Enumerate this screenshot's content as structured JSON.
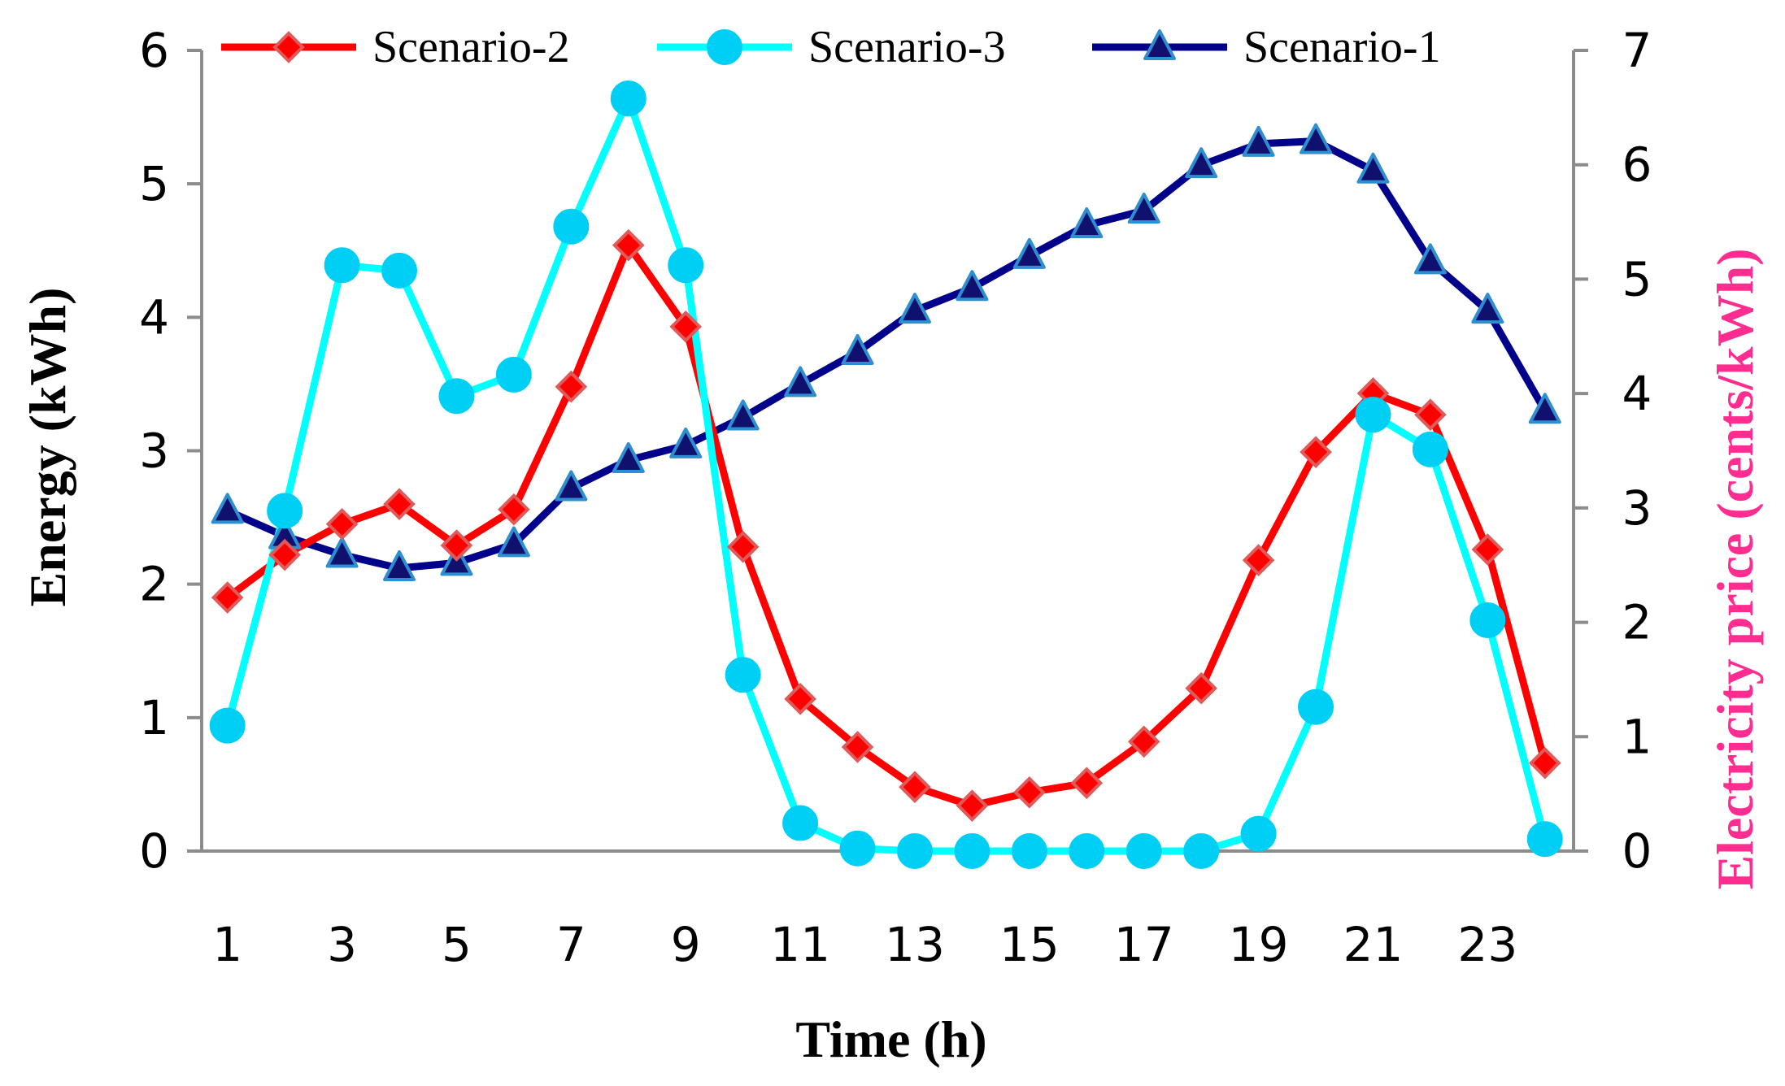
{
  "chart_data": {
    "type": "line",
    "xlabel": "Time (h)",
    "ylabel": "Energy (kWh)",
    "y2label": "Electricity price (cents/kWh)",
    "ylim": [
      0,
      6
    ],
    "y2lim": [
      0,
      7
    ],
    "y_ticks": [
      "0",
      "1",
      "2",
      "3",
      "4",
      "5",
      "6"
    ],
    "y2_ticks": [
      "0",
      "1",
      "2",
      "3",
      "4",
      "5",
      "6",
      "7"
    ],
    "x": [
      1,
      2,
      3,
      4,
      5,
      6,
      7,
      8,
      9,
      10,
      11,
      12,
      13,
      14,
      15,
      16,
      17,
      18,
      19,
      20,
      21,
      22,
      23,
      24
    ],
    "x_tick_labels": [
      "1",
      "3",
      "5",
      "7",
      "9",
      "11",
      "13",
      "15",
      "17",
      "19",
      "21",
      "23"
    ],
    "legend_position": "top",
    "grid": false,
    "colors": {
      "axis": "#8c8c8c",
      "y2_title": "#ff2d8f"
    },
    "series": [
      {
        "name": "Scenario-2",
        "color": "#ff0000",
        "marker": "diamond",
        "marker_fill": "#ff0000",
        "marker_stroke": "#e05a5a",
        "values": [
          1.9,
          2.22,
          2.45,
          2.6,
          2.29,
          2.56,
          3.48,
          4.54,
          3.93,
          2.28,
          1.14,
          0.78,
          0.48,
          0.34,
          0.44,
          0.51,
          0.82,
          1.22,
          2.18,
          2.99,
          3.43,
          3.27,
          2.26,
          0.66
        ]
      },
      {
        "name": "Scenario-3",
        "color": "#00ffff",
        "marker": "circle",
        "marker_fill": "#00cff5",
        "marker_stroke": "#00cff5",
        "values": [
          0.94,
          2.55,
          4.39,
          4.35,
          3.41,
          3.57,
          4.68,
          5.64,
          4.39,
          1.32,
          0.21,
          0.02,
          0.0,
          0.0,
          0.0,
          0.0,
          0.0,
          0.0,
          0.13,
          1.08,
          3.27,
          3.01,
          1.73,
          0.09
        ]
      },
      {
        "name": "Scenario-1",
        "color": "#00008b",
        "marker": "triangle",
        "marker_fill": "#10106e",
        "marker_stroke": "#2e8fd0",
        "values": [
          2.55,
          2.36,
          2.22,
          2.12,
          2.16,
          2.3,
          2.72,
          2.93,
          3.04,
          3.25,
          3.5,
          3.74,
          4.05,
          4.22,
          4.46,
          4.69,
          4.8,
          5.14,
          5.3,
          5.32,
          5.1,
          4.42,
          4.05,
          3.3
        ]
      }
    ]
  }
}
